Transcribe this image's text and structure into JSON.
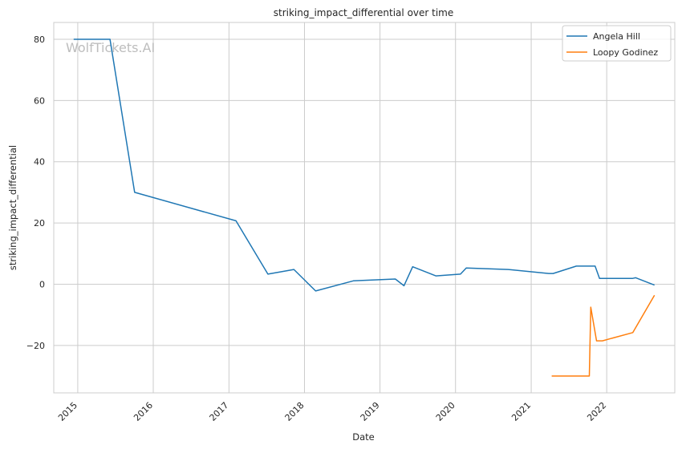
{
  "chart_data": {
    "type": "line",
    "title": "striking_impact_differential over time",
    "xlabel": "Date",
    "ylabel": "striking_impact_differential",
    "watermark": "WolfTickets.AI",
    "xlim": [
      "2014-09-07",
      "2022-11-26"
    ],
    "ylim": [
      -35.5,
      85.5
    ],
    "x_ticks": [
      "2015",
      "2016",
      "2017",
      "2018",
      "2019",
      "2020",
      "2021",
      "2022"
    ],
    "y_ticks": [
      -20,
      0,
      20,
      40,
      60,
      80
    ],
    "grid": true,
    "legend": "top-right",
    "series": [
      {
        "name": "Angela Hill",
        "color": "#1f77b4",
        "points": [
          [
            "2014-12-12",
            80.0
          ],
          [
            "2015-06-06",
            80.0
          ],
          [
            "2015-10-03",
            30.0
          ],
          [
            "2017-02-04",
            20.7
          ],
          [
            "2017-07-08",
            3.3
          ],
          [
            "2017-11-11",
            4.8
          ],
          [
            "2018-02-24",
            -2.2
          ],
          [
            "2018-08-25",
            1.1
          ],
          [
            "2019-03-16",
            1.7
          ],
          [
            "2019-04-27",
            -0.5
          ],
          [
            "2019-06-08",
            5.7
          ],
          [
            "2019-09-28",
            2.7
          ],
          [
            "2020-01-25",
            3.3
          ],
          [
            "2020-02-22",
            5.3
          ],
          [
            "2020-09-12",
            4.8
          ],
          [
            "2021-03-27",
            3.5
          ],
          [
            "2021-04-17",
            3.5
          ],
          [
            "2021-08-07",
            5.9
          ],
          [
            "2021-11-06",
            5.9
          ],
          [
            "2021-11-27",
            1.9
          ],
          [
            "2022-05-07",
            1.9
          ],
          [
            "2022-05-21",
            2.1
          ],
          [
            "2022-08-20",
            -0.3
          ]
        ]
      },
      {
        "name": "Loopy Godinez",
        "color": "#ff7f0e",
        "points": [
          [
            "2021-04-10",
            -30.0
          ],
          [
            "2021-10-09",
            -30.0
          ],
          [
            "2021-10-16",
            -7.5
          ],
          [
            "2021-11-13",
            -18.5
          ],
          [
            "2021-12-11",
            -18.5
          ],
          [
            "2022-05-07",
            -15.8
          ],
          [
            "2022-08-20",
            -3.6
          ]
        ]
      }
    ]
  }
}
